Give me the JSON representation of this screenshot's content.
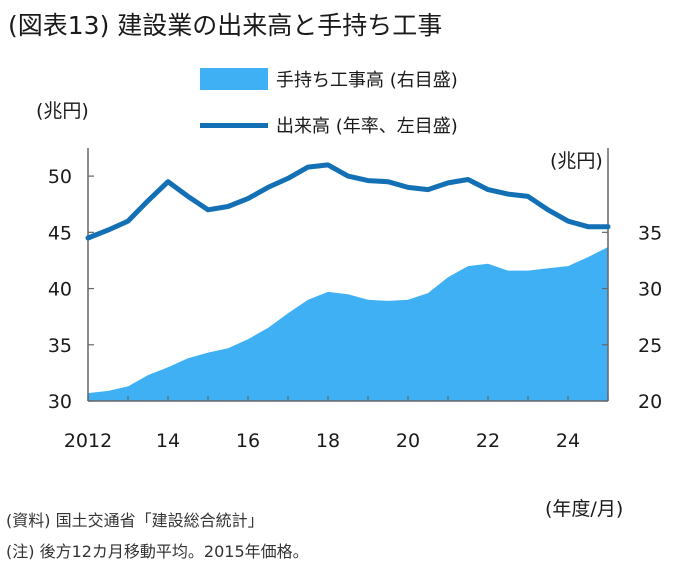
{
  "title": "(図表13) 建設業の出来高と手持ち工事",
  "legend": {
    "area_label": "手持ち工事高 (右目盛)",
    "line_label": "出来高 (年率、左目盛)"
  },
  "units": {
    "left": "(兆円)",
    "right": "(兆円)",
    "x": "(年度/月)"
  },
  "notes": {
    "source": "(資料) 国土交通省「建設総合統計」",
    "note": "(注) 後方12カ月移動平均。2015年価格。"
  },
  "colors": {
    "area": "#40b0f5",
    "line": "#1470b4",
    "axis": "#666666"
  },
  "chart_data": {
    "type": "line",
    "x_range": [
      2012,
      2025
    ],
    "xticks": [
      2012,
      2014,
      2016,
      2018,
      2020,
      2022,
      2024
    ],
    "xtick_labels": [
      "2012",
      "14",
      "16",
      "18",
      "20",
      "22",
      "24"
    ],
    "ylim_left": [
      30,
      52.5
    ],
    "yticks_left": [
      30,
      35,
      40,
      45,
      50
    ],
    "ylim_right": [
      20,
      42.5
    ],
    "yticks_right": [
      20,
      25,
      30,
      35
    ],
    "legend_position": "top",
    "grid": false,
    "series": [
      {
        "name": "手持ち工事高 (右目盛)",
        "type": "area",
        "axis": "right",
        "x": [
          2012.0,
          2012.5,
          2013.0,
          2013.5,
          2014.0,
          2014.5,
          2015.0,
          2015.5,
          2016.0,
          2016.5,
          2017.0,
          2017.5,
          2018.0,
          2018.5,
          2019.0,
          2019.5,
          2020.0,
          2020.5,
          2021.0,
          2021.5,
          2022.0,
          2022.5,
          2023.0,
          2023.5,
          2024.0,
          2024.5,
          2025.0
        ],
        "values": [
          20.7,
          20.9,
          21.3,
          22.3,
          23.0,
          23.8,
          24.3,
          24.7,
          25.5,
          26.5,
          27.8,
          29.0,
          29.7,
          29.5,
          29.0,
          28.9,
          29.0,
          29.6,
          31.0,
          32.0,
          32.2,
          31.6,
          31.6,
          31.8,
          32.0,
          32.8,
          33.7
        ]
      },
      {
        "name": "出来高 (年率、左目盛)",
        "type": "line",
        "axis": "left",
        "x": [
          2012.0,
          2012.5,
          2013.0,
          2013.5,
          2014.0,
          2014.5,
          2015.0,
          2015.5,
          2016.0,
          2016.5,
          2017.0,
          2017.5,
          2018.0,
          2018.5,
          2019.0,
          2019.5,
          2020.0,
          2020.5,
          2021.0,
          2021.5,
          2022.0,
          2022.5,
          2023.0,
          2023.5,
          2024.0,
          2024.5,
          2025.0
        ],
        "values": [
          44.5,
          45.2,
          46.0,
          47.8,
          49.5,
          48.2,
          47.0,
          47.3,
          48.0,
          49.0,
          49.8,
          50.8,
          51.0,
          50.0,
          49.6,
          49.5,
          49.0,
          48.8,
          49.4,
          49.7,
          48.8,
          48.4,
          48.2,
          47.0,
          46.0,
          45.5,
          45.5
        ]
      }
    ]
  }
}
